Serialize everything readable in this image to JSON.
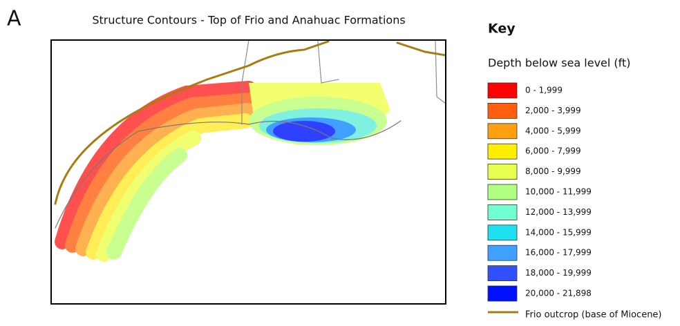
{
  "panel_label": "A",
  "title": "Structure Contours - Top of Frio and Anahuac Formations",
  "key": {
    "heading": "Key",
    "subheading": "Depth below sea level (ft)",
    "items": [
      {
        "label": "0 - 1,999",
        "color": "#ff0000"
      },
      {
        "label": "2,000 - 3,999",
        "color": "#ff6010"
      },
      {
        "label": "4,000 - 5,999",
        "color": "#ffa010"
      },
      {
        "label": "6,000 - 7,999",
        "color": "#ffee00"
      },
      {
        "label": "8,000 - 9,999",
        "color": "#e8ff50"
      },
      {
        "label": "10,000 - 11,999",
        "color": "#b0ff80"
      },
      {
        "label": "12,000 - 13,999",
        "color": "#70ffd0"
      },
      {
        "label": "14,000 - 15,999",
        "color": "#20e0f0"
      },
      {
        "label": "16,000 - 17,999",
        "color": "#40a0ff"
      },
      {
        "label": "18,000 - 19,999",
        "color": "#3050ff"
      },
      {
        "label": "20,000 - 21,898",
        "color": "#0010ff"
      }
    ],
    "outcrop": {
      "label": "Frio outcrop (base of Miocene)",
      "color": "#a87c10"
    }
  }
}
